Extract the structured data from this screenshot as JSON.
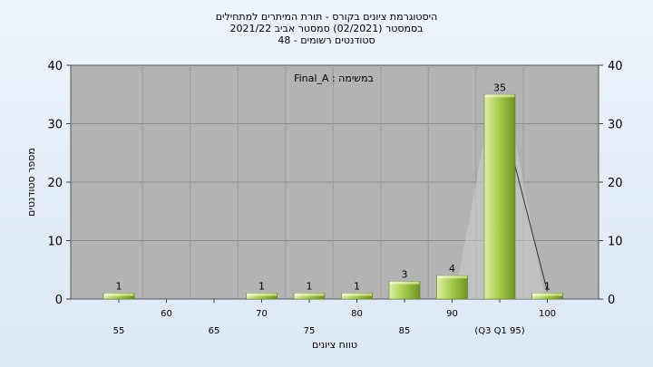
{
  "chart_data": {
    "type": "bar",
    "title_lines": [
      "היסטוגרמת ציונים בקורס - תורת המיתרים למתחילים",
      "בסמסטר  (02/2021)  סמסטר אביב 2021/22",
      "סטודנטים רשומים - 48"
    ],
    "annotation": "במשימה : Final_A",
    "ylabel": "מספר סטודנטים",
    "xlabel": "טווח ציונים",
    "ylim": [
      0,
      40
    ],
    "yticks": [
      0,
      10,
      20,
      30,
      40
    ],
    "categories": [
      "55",
      "60",
      "65",
      "70",
      "75",
      "80",
      "85",
      "90",
      "(Q3 Q1 95)",
      "100"
    ],
    "values": [
      1,
      0,
      0,
      1,
      1,
      1,
      3,
      4,
      35,
      1
    ],
    "value_labels": [
      "1",
      "",
      "",
      "1",
      "1",
      "1",
      "3",
      "4",
      "35",
      "1"
    ],
    "grid": true,
    "colors": {
      "plot_bg": "#b3b3b3",
      "bar_light": "#dff0a8",
      "bar_mid": "#a9cf4d",
      "bar_dark": "#6f9225",
      "boxplot_fill": "#cccccc"
    }
  }
}
